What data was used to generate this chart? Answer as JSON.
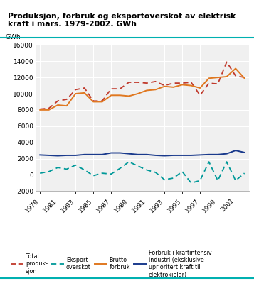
{
  "title_line1": "Produksjon, forbruk og eksportoverskot av elektrisk",
  "title_line2": "kraft i mars. 1979-2002. GWh",
  "ylabel": "GWh",
  "years": [
    1979,
    1980,
    1981,
    1982,
    1983,
    1984,
    1985,
    1986,
    1987,
    1988,
    1989,
    1990,
    1991,
    1992,
    1993,
    1994,
    1995,
    1996,
    1997,
    1998,
    1999,
    2000,
    2001,
    2002
  ],
  "total_produksjon": [
    8100,
    8200,
    9100,
    9300,
    10500,
    10700,
    9100,
    9100,
    10600,
    10600,
    11400,
    11400,
    11300,
    11500,
    11000,
    11300,
    11300,
    11400,
    9800,
    11300,
    11200,
    13900,
    12200,
    12000
  ],
  "eksport_overskot": [
    200,
    400,
    900,
    700,
    1200,
    600,
    -100,
    200,
    100,
    800,
    1600,
    1100,
    600,
    300,
    -600,
    -400,
    400,
    -1000,
    -700,
    1600,
    -700,
    1600,
    -700,
    200
  ],
  "brutto_forbruk": [
    8000,
    8000,
    8600,
    8500,
    10000,
    10100,
    9000,
    9000,
    9800,
    9800,
    9700,
    10000,
    10400,
    10500,
    10900,
    10800,
    11100,
    11000,
    10700,
    11900,
    12000,
    12100,
    13100,
    11900
  ],
  "kraftintensiv": [
    2450,
    2400,
    2350,
    2400,
    2400,
    2500,
    2500,
    2500,
    2700,
    2700,
    2600,
    2500,
    2500,
    2400,
    2350,
    2400,
    2400,
    2400,
    2450,
    2500,
    2500,
    2600,
    3000,
    2750
  ],
  "color_produksjon": "#c0392b",
  "color_eksport": "#009999",
  "color_brutto": "#e07820",
  "color_kraftintensiv": "#1a3a8c",
  "ylim": [
    -2000,
    16000
  ],
  "yticks": [
    -2000,
    0,
    2000,
    4000,
    6000,
    8000,
    10000,
    12000,
    14000,
    16000
  ],
  "xtick_years": [
    1979,
    1981,
    1983,
    1985,
    1987,
    1989,
    1991,
    1993,
    1995,
    1997,
    1999,
    2001
  ],
  "legend_labels": [
    "Total\nproduk-\nsjon",
    "Eksport-\noverskot",
    "Brutto-\nforbruk",
    "Forbruk i kraftintensiv\nindustri (eksklusive\nuprioritert kraft til\nelektrokjelar)"
  ],
  "bg_color": "#f0f0f0",
  "teal_line_color": "#00b0b0"
}
